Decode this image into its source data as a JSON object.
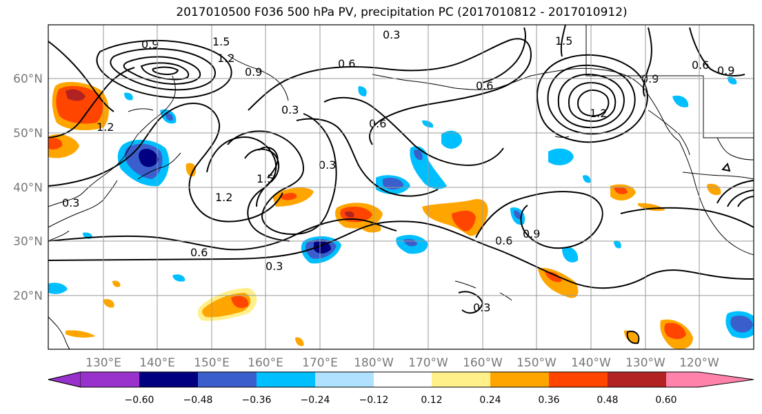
{
  "title": "2017010500 F036 500 hPa PV, precipitation PC (2017010812 - 2017010912)",
  "lat_ticks": [
    "20°N",
    "30°N",
    "40°N",
    "50°N",
    "60°N"
  ],
  "lon_ticks": [
    "130°E",
    "140°E",
    "150°E",
    "160°E",
    "170°E",
    "180°W",
    "170°W",
    "160°W",
    "150°W",
    "140°W",
    "130°W",
    "120°W"
  ],
  "colorbar": {
    "labels": [
      "−0.60",
      "−0.48",
      "−0.36",
      "−0.24",
      "−0.12",
      "0.12",
      "0.24",
      "0.36",
      "0.48",
      "0.60"
    ],
    "colors": [
      "#9932cc",
      "#000080",
      "#3a5fcd",
      "#00bfff",
      "#b0e2ff",
      "#ffffff",
      "#fff08a",
      "#ffa500",
      "#ff4500",
      "#b22222",
      "#ff82ab"
    ]
  },
  "pv_labels": [
    "0.9",
    "1.5",
    "1.2",
    "0.9",
    "0.3",
    "1.5",
    "0.6",
    "0.3",
    "0.6",
    "1.5",
    "1.2",
    "0.3",
    "1.2",
    "0.6",
    "0.3",
    "0.6",
    "0.9",
    "0.3",
    "0.9",
    "0.6",
    "0.9",
    "0.3",
    "0.6",
    "1.2"
  ]
}
